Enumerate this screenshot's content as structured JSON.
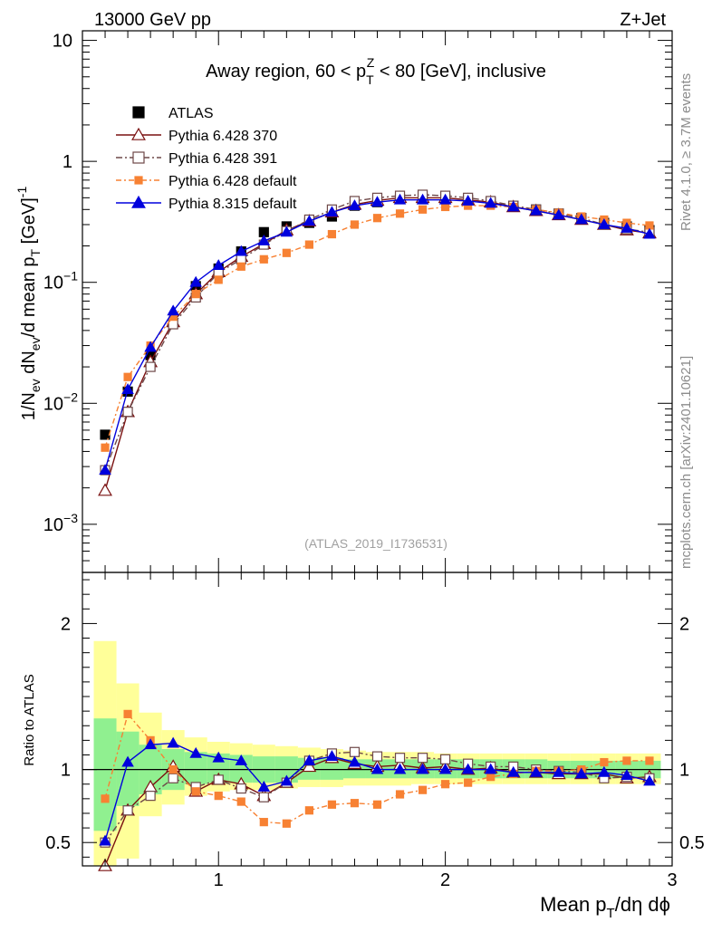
{
  "header": {
    "left": "13000 GeV pp",
    "right": "Z+Jet"
  },
  "side": {
    "rivet": "Rivet 4.1.0, ≥ 3.7M events",
    "mcplots": "mcplots.cern.ch [arXiv:2401.10621]"
  },
  "colors": {
    "atlas": "#000000",
    "py6_370": "#7a1010",
    "py6_391": "#6e4848",
    "py6_default": "#f78133",
    "py8_default": "#0000dd",
    "band_inner": "#90f090",
    "band_outer": "#ffff99"
  },
  "chart_data": [
    {
      "type": "line",
      "title": "Away region, 60 < p_T^Z < 80 [GeV], inclusive",
      "watermark": "(ATLAS_2019_I1736531)",
      "ylabel": "1/N_ev dN_ev/d mean p_T [GeV]^-1",
      "yscale": "log",
      "xlim": [
        0.4,
        3.0
      ],
      "ylim": [
        0.0004,
        12
      ],
      "y_ticks": [
        {
          "v": 0.001,
          "base": "10",
          "exp": "−3"
        },
        {
          "v": 0.01,
          "base": "10",
          "exp": "−2"
        },
        {
          "v": 0.1,
          "base": "10",
          "exp": "−1"
        },
        {
          "v": 1,
          "base": "1",
          "exp": ""
        },
        {
          "v": 10,
          "base": "10",
          "exp": ""
        }
      ],
      "x": [
        0.5,
        0.6,
        0.7,
        0.8,
        0.9,
        1.0,
        1.1,
        1.2,
        1.3,
        1.4,
        1.5,
        1.6,
        1.7,
        1.8,
        1.9,
        2.0,
        2.1,
        2.2,
        2.3,
        2.4,
        2.5,
        2.6,
        2.7,
        2.8,
        2.9
      ],
      "series": [
        {
          "name": "ATLAS",
          "key": "atlas",
          "values": [
            0.0055,
            0.0125,
            0.025,
            null,
            0.093,
            0.13,
            0.18,
            0.26,
            0.29,
            0.31,
            0.35,
            0.43,
            0.46,
            0.49,
            0.49,
            0.49,
            0.48,
            0.46,
            0.43,
            0.4,
            0.37,
            0.34,
            0.31,
            0.29,
            0.27
          ]
        },
        {
          "name": "Pythia 6.428 370",
          "key": "py6_370",
          "values": [
            0.0019,
            0.0085,
            0.022,
            0.047,
            0.08,
            0.122,
            0.163,
            0.208,
            0.27,
            0.32,
            0.38,
            0.44,
            0.475,
            0.5,
            0.5,
            0.5,
            0.48,
            0.46,
            0.42,
            0.39,
            0.36,
            0.33,
            0.3,
            0.27,
            0.255
          ]
        },
        {
          "name": "Pythia 6.428 391",
          "key": "py6_391",
          "values": [
            0.0028,
            0.0085,
            0.02,
            0.045,
            0.075,
            0.12,
            0.155,
            0.205,
            0.265,
            0.33,
            0.4,
            0.47,
            0.5,
            0.52,
            0.53,
            0.52,
            0.5,
            0.47,
            0.43,
            0.4,
            0.37,
            0.34,
            0.3,
            0.275,
            0.26
          ]
        },
        {
          "name": "Pythia 6.428 default",
          "key": "py6_default",
          "values": [
            0.0043,
            0.0165,
            0.03,
            0.052,
            0.08,
            0.105,
            0.135,
            0.155,
            0.175,
            0.205,
            0.25,
            0.3,
            0.34,
            0.37,
            0.4,
            0.42,
            0.43,
            0.43,
            0.42,
            0.4,
            0.375,
            0.35,
            0.33,
            0.31,
            0.295
          ]
        },
        {
          "name": "Pythia 8.315 default",
          "key": "py8_default",
          "values": [
            0.0028,
            0.013,
            0.029,
            0.058,
            0.1,
            0.138,
            0.18,
            0.22,
            0.26,
            0.32,
            0.38,
            0.43,
            0.46,
            0.48,
            0.48,
            0.48,
            0.47,
            0.45,
            0.42,
            0.39,
            0.36,
            0.33,
            0.3,
            0.28,
            0.25
          ]
        }
      ]
    },
    {
      "type": "line",
      "ylabel": "Ratio to ATLAS",
      "xlabel": "Mean p_T/dη dφ",
      "xlim": [
        0.4,
        3.0
      ],
      "ylim": [
        0.34,
        2.35
      ],
      "x_ticks": [
        1,
        2,
        3
      ],
      "y_ticks": [
        0.5,
        1,
        2
      ],
      "band_edges": [
        0.45,
        0.55,
        0.65,
        0.75,
        0.85,
        0.95,
        1.05,
        1.15,
        1.25,
        1.35,
        1.45,
        1.55,
        1.65,
        1.75,
        1.85,
        1.95,
        2.05,
        2.15,
        2.25,
        2.35,
        2.45,
        2.55,
        2.65,
        2.75,
        2.85,
        2.95
      ],
      "band_inner": [
        [
          0.58,
          1.35
        ],
        [
          0.75,
          1.26
        ],
        [
          0.83,
          1.17
        ],
        [
          0.86,
          1.14
        ],
        [
          0.9,
          1.12
        ],
        [
          0.91,
          1.11
        ],
        [
          0.91,
          1.1
        ],
        [
          0.91,
          1.09
        ],
        [
          0.91,
          1.09
        ],
        [
          0.93,
          1.08
        ],
        [
          0.93,
          1.08
        ],
        [
          0.94,
          1.07
        ],
        [
          0.94,
          1.07
        ],
        [
          0.94,
          1.07
        ],
        [
          0.94,
          1.07
        ],
        [
          0.94,
          1.07
        ],
        [
          0.94,
          1.07
        ],
        [
          0.94,
          1.07
        ],
        [
          0.94,
          1.07
        ],
        [
          0.94,
          1.07
        ],
        [
          0.94,
          1.06
        ],
        [
          0.94,
          1.06
        ],
        [
          0.94,
          1.06
        ],
        [
          0.94,
          1.06
        ],
        [
          0.94,
          1.06
        ]
      ],
      "band_outer": [
        [
          0.34,
          1.88
        ],
        [
          0.39,
          1.59
        ],
        [
          0.68,
          1.39
        ],
        [
          0.76,
          1.27
        ],
        [
          0.82,
          1.22
        ],
        [
          0.85,
          1.19
        ],
        [
          0.86,
          1.18
        ],
        [
          0.86,
          1.17
        ],
        [
          0.87,
          1.16
        ],
        [
          0.88,
          1.15
        ],
        [
          0.88,
          1.14
        ],
        [
          0.89,
          1.13
        ],
        [
          0.89,
          1.12
        ],
        [
          0.89,
          1.12
        ],
        [
          0.9,
          1.12
        ],
        [
          0.9,
          1.11
        ],
        [
          0.9,
          1.11
        ],
        [
          0.9,
          1.11
        ],
        [
          0.9,
          1.11
        ],
        [
          0.9,
          1.11
        ],
        [
          0.9,
          1.11
        ],
        [
          0.9,
          1.11
        ],
        [
          0.9,
          1.11
        ],
        [
          0.9,
          1.11
        ],
        [
          0.9,
          1.11
        ]
      ],
      "x": [
        0.5,
        0.6,
        0.7,
        0.8,
        0.9,
        1.0,
        1.1,
        1.2,
        1.3,
        1.4,
        1.5,
        1.6,
        1.7,
        1.8,
        1.9,
        2.0,
        2.1,
        2.2,
        2.3,
        2.4,
        2.5,
        2.6,
        2.7,
        2.8,
        2.9
      ],
      "series": [
        {
          "name": "Pythia 6.428 370",
          "key": "py6_370",
          "values": [
            0.34,
            0.72,
            0.88,
            1.02,
            0.85,
            0.93,
            0.9,
            0.82,
            0.91,
            1.02,
            1.08,
            1.04,
            1.02,
            1.03,
            1.01,
            1.02,
            1.0,
            1.01,
            0.98,
            0.98,
            0.97,
            0.97,
            0.97,
            0.94,
            0.95
          ]
        },
        {
          "name": "Pythia 6.428 391",
          "key": "py6_391",
          "values": [
            0.5,
            0.72,
            0.82,
            0.94,
            0.88,
            0.93,
            0.87,
            0.81,
            0.91,
            1.06,
            1.11,
            1.12,
            1.09,
            1.08,
            1.08,
            1.07,
            1.04,
            1.02,
            1.02,
            1.0,
            0.99,
            0.98,
            0.94,
            0.95,
            0.94
          ]
        },
        {
          "name": "Pythia 6.428 default",
          "key": "py6_default",
          "values": [
            0.8,
            1.38,
            1.2,
            1.0,
            0.85,
            0.82,
            0.78,
            0.64,
            0.63,
            0.72,
            0.76,
            0.77,
            0.76,
            0.83,
            0.86,
            0.9,
            0.91,
            0.95,
            0.97,
            0.99,
            0.99,
            1.0,
            1.05,
            1.06,
            1.06
          ]
        },
        {
          "name": "Pythia 8.315 default",
          "key": "py8_default",
          "values": [
            0.51,
            1.05,
            1.17,
            1.18,
            1.11,
            1.08,
            1.06,
            0.88,
            0.92,
            1.06,
            1.09,
            1.05,
            1.0,
            1.0,
            1.0,
            1.0,
            1.0,
            1.0,
            0.98,
            0.98,
            0.98,
            0.97,
            0.98,
            0.96,
            0.92
          ]
        }
      ]
    }
  ]
}
